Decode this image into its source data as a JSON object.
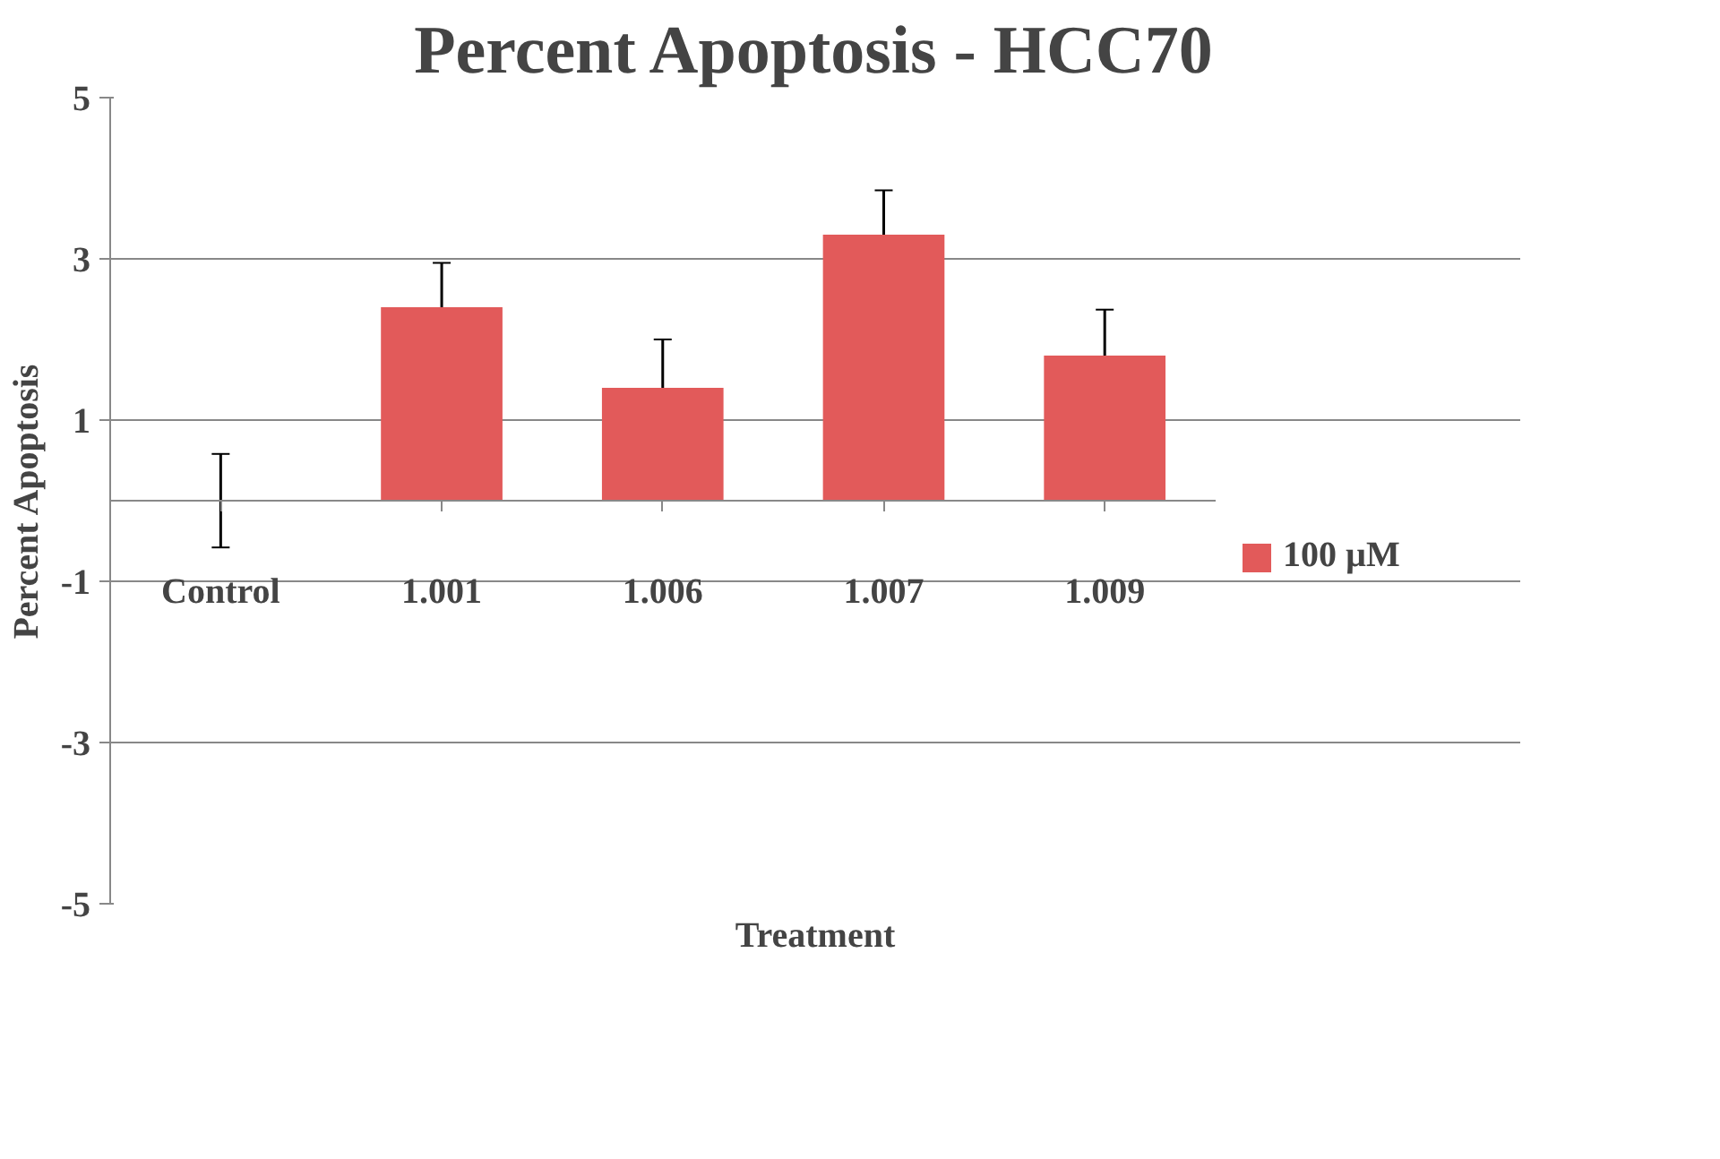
{
  "chart_data": {
    "type": "bar",
    "title": "Percent Apoptosis - HCC70",
    "xlabel": "Treatment",
    "ylabel": "Percent Apoptosis",
    "categories": [
      "Control",
      "1.001",
      "1.006",
      "1.007",
      "1.009"
    ],
    "series": [
      {
        "name": "100 µM",
        "color": "#e25a5a",
        "values": [
          0,
          2.4,
          1.4,
          3.3,
          1.8
        ],
        "errors": [
          0.58,
          0.55,
          0.6,
          0.55,
          0.57
        ]
      }
    ],
    "ylim": [
      -5,
      5
    ],
    "yticks": [
      -5,
      -3,
      -1,
      1,
      3,
      5
    ],
    "grid": "y",
    "legend": "right"
  }
}
